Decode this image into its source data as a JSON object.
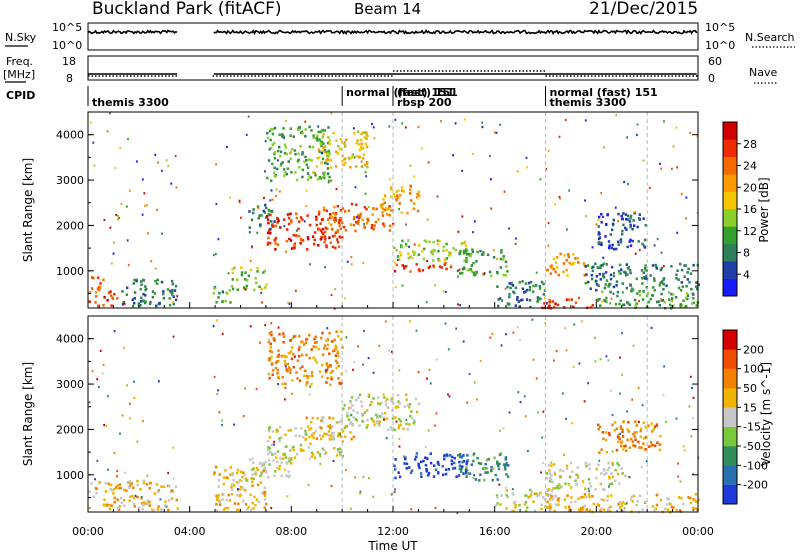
{
  "header": {
    "station": "Buckland Park (fitACF)",
    "beam": "Beam 14",
    "date": "21/Dec/2015"
  },
  "status_panels": {
    "nsky_label": "N.Sky",
    "nsky_ticks": [
      "10^5",
      "10^0"
    ],
    "nsearch_label": "N.Search",
    "nsearch_ticks": [
      "10^5",
      "10^0"
    ],
    "freq_label_line1": "Freq.",
    "freq_label_line2": "[MHz]",
    "freq_ticks": [
      "18",
      "8"
    ],
    "nave_label": "Nave",
    "nave_ticks": [
      "60",
      "0"
    ],
    "cpid_label": "CPID",
    "cpid_segments": [
      {
        "label": "themis 3300",
        "start_hr": 0.0,
        "row": 1
      },
      {
        "label": "normal (fast) 151",
        "start_hr": 10.0,
        "row": 0
      },
      {
        "label": "(fast) 151",
        "start_hr": 12.0,
        "row": 0
      },
      {
        "label": "rbsp 200",
        "start_hr": 12.0,
        "row": 1
      },
      {
        "label": "normal (fast) 151",
        "start_hr": 18.0,
        "row": 0
      },
      {
        "label": "themis 3300",
        "start_hr": 18.0,
        "row": 1
      }
    ]
  },
  "chart_data": [
    {
      "type": "heatmap",
      "name": "power",
      "ylabel": "Slant Range [km]",
      "ylim": [
        180,
        4500
      ],
      "yticks": [
        1000,
        2000,
        3000,
        4000
      ],
      "xlim": [
        0,
        24
      ],
      "colorbar": {
        "label": "Power [dB]",
        "ticks": [
          "4",
          "8",
          "12",
          "16",
          "20",
          "24",
          "28"
        ],
        "colors": [
          "#1a1aff",
          "#2040a8",
          "#2d7f5a",
          "#32a02c",
          "#8ccf2a",
          "#f4c500",
          "#fb9a00",
          "#f56a00",
          "#ee2a00",
          "#d10000"
        ]
      },
      "regions": [
        {
          "t0": 0.0,
          "t1": 0.6,
          "r0": 200,
          "r1": 900,
          "c": 7
        },
        {
          "t0": 0.6,
          "t1": 1.2,
          "r0": 250,
          "r1": 600,
          "c": 8
        },
        {
          "t0": 1.2,
          "t1": 3.5,
          "r0": 250,
          "r1": 850,
          "c": 2
        },
        {
          "t0": 4.9,
          "t1": 5.6,
          "r0": 250,
          "r1": 700,
          "c": 3
        },
        {
          "t0": 5.6,
          "t1": 7.0,
          "r0": 600,
          "r1": 1100,
          "c": 4
        },
        {
          "t0": 6.3,
          "t1": 7.3,
          "r0": 1900,
          "r1": 2500,
          "c": 2
        },
        {
          "t0": 7.0,
          "t1": 10.0,
          "r0": 1500,
          "r1": 2300,
          "c": 8
        },
        {
          "t0": 9.0,
          "t1": 12.0,
          "r0": 1900,
          "r1": 2500,
          "c": 7
        },
        {
          "t0": 11.5,
          "t1": 13.0,
          "r0": 2300,
          "r1": 2900,
          "c": 6
        },
        {
          "t0": 7.0,
          "t1": 9.5,
          "r0": 3000,
          "r1": 4200,
          "c": 3
        },
        {
          "t0": 9.0,
          "t1": 11.0,
          "r0": 3300,
          "r1": 4100,
          "c": 5
        },
        {
          "t0": 12.0,
          "t1": 14.3,
          "r0": 1000,
          "r1": 1200,
          "c": 8
        },
        {
          "t0": 12.0,
          "t1": 15.0,
          "r0": 1250,
          "r1": 1700,
          "c": 4
        },
        {
          "t0": 14.5,
          "t1": 16.5,
          "r0": 900,
          "r1": 1500,
          "c": 3
        },
        {
          "t0": 16.0,
          "t1": 18.0,
          "r0": 200,
          "r1": 800,
          "c": 2
        },
        {
          "t0": 18.0,
          "t1": 19.5,
          "r0": 900,
          "r1": 1400,
          "c": 6
        },
        {
          "t0": 17.5,
          "t1": 20.0,
          "r0": 200,
          "r1": 400,
          "c": 8
        },
        {
          "t0": 19.5,
          "t1": 24.0,
          "r0": 600,
          "r1": 1200,
          "c": 2
        },
        {
          "t0": 20.0,
          "t1": 22.0,
          "r0": 1500,
          "r1": 2300,
          "c": 1
        },
        {
          "t0": 20.0,
          "t1": 24.0,
          "r0": 200,
          "r1": 600,
          "c": 3
        }
      ]
    },
    {
      "type": "heatmap",
      "name": "velocity",
      "ylabel": "Slant Range [km]",
      "xlabel": "Time UT",
      "ylim": [
        180,
        4500
      ],
      "yticks": [
        1000,
        2000,
        3000,
        4000
      ],
      "xlim": [
        0,
        24
      ],
      "xticks": [
        "00:00",
        "04:00",
        "08:00",
        "12:00",
        "16:00",
        "20:00",
        "00:00"
      ],
      "colorbar": {
        "label": "Velocity [m s^-1]",
        "ticks": [
          "200",
          "100",
          "50",
          "15",
          "-15",
          "-50",
          "-100",
          "-200"
        ],
        "colors": [
          "#1e3ad8",
          "#2a6fb0",
          "#2f8f5a",
          "#79c83a",
          "#c7c7c7",
          "#f0b400",
          "#f38000",
          "#ee4a00",
          "#d40000"
        ]
      },
      "regions": [
        {
          "t0": 0.0,
          "t1": 3.5,
          "r0": 250,
          "r1": 900,
          "c": 5
        },
        {
          "t0": 4.9,
          "t1": 7.0,
          "r0": 250,
          "r1": 1200,
          "c": 5
        },
        {
          "t0": 6.0,
          "t1": 8.0,
          "r0": 900,
          "r1": 1400,
          "c": 4
        },
        {
          "t0": 7.0,
          "t1": 10.0,
          "r0": 1400,
          "r1": 2100,
          "c": 4
        },
        {
          "t0": 8.5,
          "t1": 10.5,
          "r0": 1800,
          "r1": 2300,
          "c": 5
        },
        {
          "t0": 10.0,
          "t1": 13.0,
          "r0": 2000,
          "r1": 2800,
          "c": 4
        },
        {
          "t0": 7.0,
          "t1": 10.0,
          "r0": 3000,
          "r1": 4200,
          "c": 6
        },
        {
          "t0": 12.0,
          "t1": 15.0,
          "r0": 950,
          "r1": 1500,
          "c": 0
        },
        {
          "t0": 14.5,
          "t1": 16.5,
          "r0": 900,
          "r1": 1500,
          "c": 2
        },
        {
          "t0": 16.0,
          "t1": 18.5,
          "r0": 200,
          "r1": 700,
          "c": 4
        },
        {
          "t0": 18.0,
          "t1": 21.0,
          "r0": 700,
          "r1": 1300,
          "c": 4
        },
        {
          "t0": 20.0,
          "t1": 22.5,
          "r0": 1500,
          "r1": 2200,
          "c": 6
        },
        {
          "t0": 18.0,
          "t1": 24.0,
          "r0": 200,
          "r1": 600,
          "c": 5
        }
      ]
    }
  ]
}
